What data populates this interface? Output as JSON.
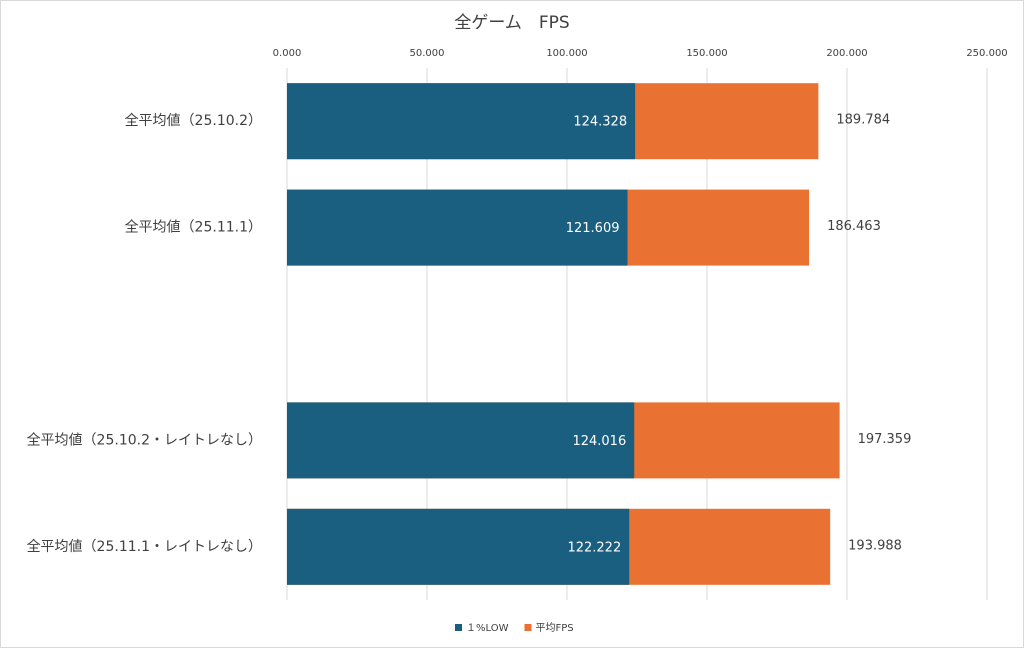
{
  "chart_data": {
    "type": "bar",
    "orientation": "horizontal",
    "title": "全ゲーム　FPS",
    "categories": [
      "全平均値（25.10.2）",
      "全平均値（25.11.1）",
      null,
      "全平均値（25.10.2・レイトレなし）",
      "全平均値（25.11.1・レイトレなし）"
    ],
    "series": [
      {
        "name": "１%LOW",
        "color": "#1a5e80",
        "values": [
          124.328,
          121.609,
          null,
          124.016,
          122.222
        ]
      },
      {
        "name": "平均FPS",
        "color": "#e97132",
        "values": [
          189.784,
          186.463,
          null,
          197.359,
          193.988
        ]
      }
    ],
    "xlim": [
      0,
      250
    ],
    "xticks": [
      {
        "value": 0,
        "label": "0.000"
      },
      {
        "value": 50,
        "label": "50.000"
      },
      {
        "value": 100,
        "label": "100.000"
      },
      {
        "value": 150,
        "label": "150.000"
      },
      {
        "value": 200,
        "label": "200.000"
      },
      {
        "value": 250,
        "label": "250.000"
      }
    ],
    "grid": true,
    "legend": "bottom"
  }
}
